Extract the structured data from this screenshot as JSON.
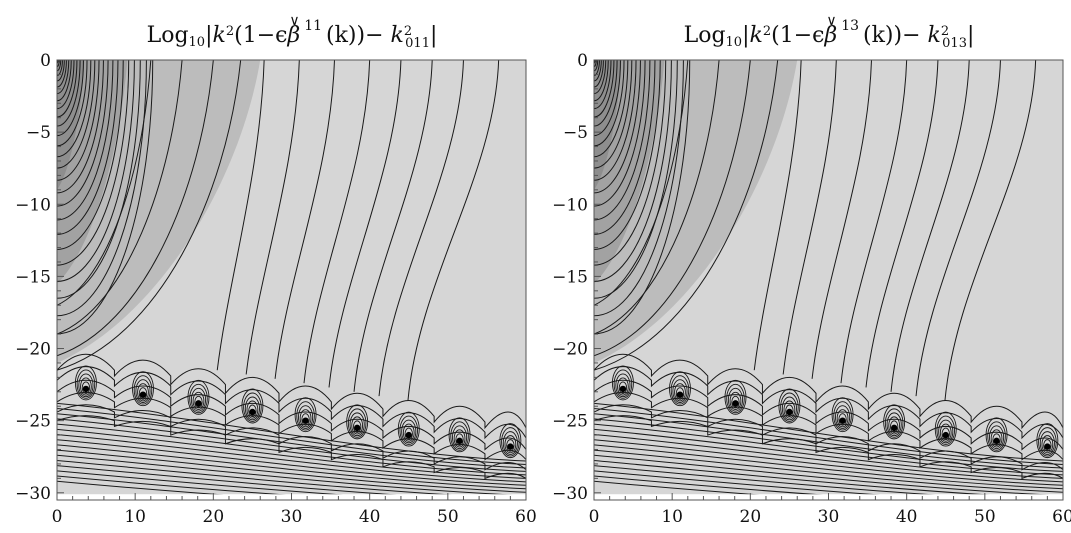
{
  "chart_data": [
    {
      "type": "contour",
      "title": {
        "prefix": "Log",
        "log_base": "10",
        "k": "k",
        "k_exp": "2",
        "open": "(1−ϵ",
        "beta": "β",
        "accent": "∨",
        "beta_index": "11",
        "mid": "(k))− ",
        "k2": "k",
        "k2_exp": "2",
        "k2_sub": "011"
      },
      "xlabel": "",
      "ylabel": "",
      "xlim": [
        0,
        60
      ],
      "ylim": [
        -30.5,
        0
      ],
      "x_ticks": [
        0,
        10,
        20,
        30,
        40,
        50,
        60
      ],
      "x_tick_labels": [
        "0",
        "10",
        "20",
        "30",
        "40",
        "50",
        "60"
      ],
      "y_ticks": [
        0,
        -5,
        -10,
        -15,
        -20,
        -25,
        -30
      ],
      "y_tick_labels": [
        "0",
        "−5",
        "−10",
        "−15",
        "−20",
        "−25",
        "−30"
      ],
      "minima": [
        {
          "x": 3.7,
          "y": -22.8
        },
        {
          "x": 11.0,
          "y": -23.2
        },
        {
          "x": 18.1,
          "y": -23.8
        },
        {
          "x": 25.0,
          "y": -24.4
        },
        {
          "x": 31.8,
          "y": -25.0
        },
        {
          "x": 38.4,
          "y": -25.5
        },
        {
          "x": 45.0,
          "y": -26.0
        },
        {
          "x": 51.5,
          "y": -26.4
        },
        {
          "x": 58.0,
          "y": -26.8
        }
      ]
    },
    {
      "type": "contour",
      "title": {
        "prefix": "Log",
        "log_base": "10",
        "k": "k",
        "k_exp": "2",
        "open": "(1−ϵ",
        "beta": "β",
        "accent": "∨",
        "beta_index": "13",
        "mid": "(k))− ",
        "k2": "k",
        "k2_exp": "2",
        "k2_sub": "013"
      },
      "xlabel": "",
      "ylabel": "",
      "xlim": [
        0,
        60
      ],
      "ylim": [
        -30.5,
        0
      ],
      "x_ticks": [
        0,
        10,
        20,
        30,
        40,
        50,
        60
      ],
      "x_tick_labels": [
        "0",
        "10",
        "20",
        "30",
        "40",
        "50",
        "60"
      ],
      "y_ticks": [
        0,
        -5,
        -10,
        -15,
        -20,
        -25,
        -30
      ],
      "y_tick_labels": [
        "0",
        "−5",
        "−10",
        "−15",
        "−20",
        "−25",
        "−30"
      ],
      "minima": [
        {
          "x": 3.7,
          "y": -22.8
        },
        {
          "x": 11.0,
          "y": -23.2
        },
        {
          "x": 18.1,
          "y": -23.8
        },
        {
          "x": 25.0,
          "y": -24.4
        },
        {
          "x": 31.8,
          "y": -25.0
        },
        {
          "x": 38.4,
          "y": -25.5
        },
        {
          "x": 45.0,
          "y": -26.0
        },
        {
          "x": 51.5,
          "y": -26.4
        },
        {
          "x": 58.0,
          "y": -26.8
        }
      ]
    }
  ],
  "colors": {
    "background": "#ffffff",
    "light_fill": "#d6d6d6",
    "mid_fill": "#bcbcbc",
    "dark_fill": "#a2a2a2",
    "contour_line": "#1a1a1a",
    "frame": "#555555"
  }
}
